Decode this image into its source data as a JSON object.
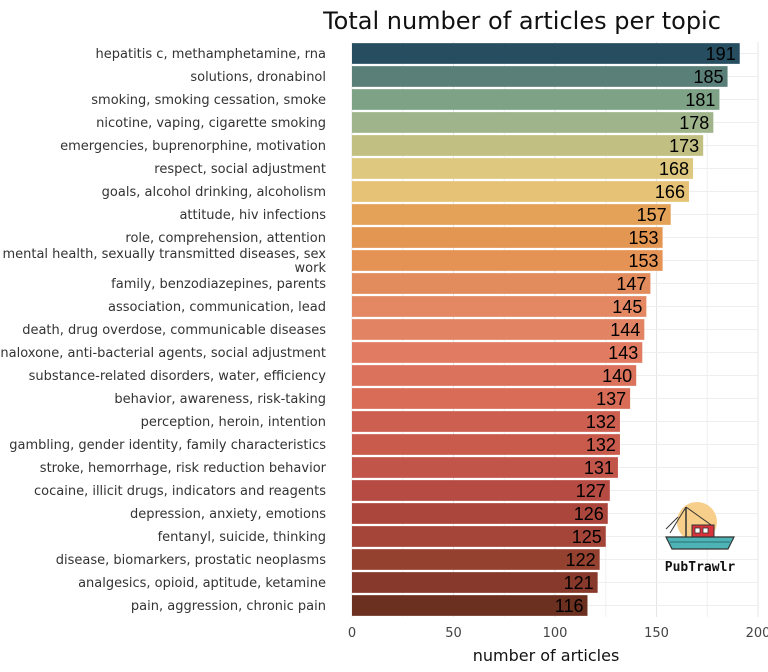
{
  "chart_data": {
    "type": "bar",
    "orientation": "horizontal",
    "title": "Total number of articles per topic",
    "xlabel": "number of articles",
    "ylabel": "",
    "xlim": [
      0,
      200
    ],
    "x_ticks": [
      0,
      50,
      100,
      150,
      200
    ],
    "grid": true,
    "legend": "none",
    "categories": [
      "hepatitis c, methamphetamine, rna",
      "solutions, dronabinol",
      "smoking, smoking cessation, smoke",
      "nicotine, vaping, cigarette smoking",
      "emergencies, buprenorphine, motivation",
      "respect, social adjustment",
      "goals, alcohol drinking, alcoholism",
      "attitude, hiv infections",
      "role, comprehension, attention",
      "mental health, sexually transmitted diseases, sex work",
      "family, benzodiazepines, parents",
      "association, communication, lead",
      "death, drug overdose, communicable diseases",
      "naloxone, anti-bacterial agents, social adjustment",
      "substance-related disorders, water, efficiency",
      "behavior, awareness, risk-taking",
      "perception, heroin, intention",
      "gambling, gender identity, family characteristics",
      "stroke, hemorrhage, risk reduction behavior",
      "cocaine, illicit drugs, indicators and reagents",
      "depression, anxiety, emotions",
      "fentanyl, suicide, thinking",
      "disease, biomarkers, prostatic neoplasms",
      "analgesics, opioid, aptitude, ketamine",
      "pain, aggression, chronic pain"
    ],
    "values": [
      191,
      185,
      181,
      178,
      173,
      168,
      166,
      157,
      153,
      153,
      147,
      145,
      144,
      143,
      140,
      137,
      132,
      132,
      131,
      127,
      126,
      125,
      122,
      121,
      116
    ],
    "colors": [
      "#264e60",
      "#5a7f78",
      "#7ea286",
      "#a0b48b",
      "#c2bf82",
      "#dec87f",
      "#e5c276",
      "#e4a158",
      "#e39552",
      "#e49355",
      "#e28c5e",
      "#e38863",
      "#e28363",
      "#e17c62",
      "#db725b",
      "#d86c57",
      "#cc5f4f",
      "#c95b4c",
      "#c2554a",
      "#b54b42",
      "#ab463d",
      "#a54539",
      "#94412f",
      "#87392b",
      "#6b3020"
    ]
  },
  "logo": {
    "text": "PubTrawlr",
    "icon": "fishing-boat-icon",
    "sun_color": "#f7cf8a",
    "water_color": "#4db3b5",
    "cabin_color": "#d8323a"
  }
}
